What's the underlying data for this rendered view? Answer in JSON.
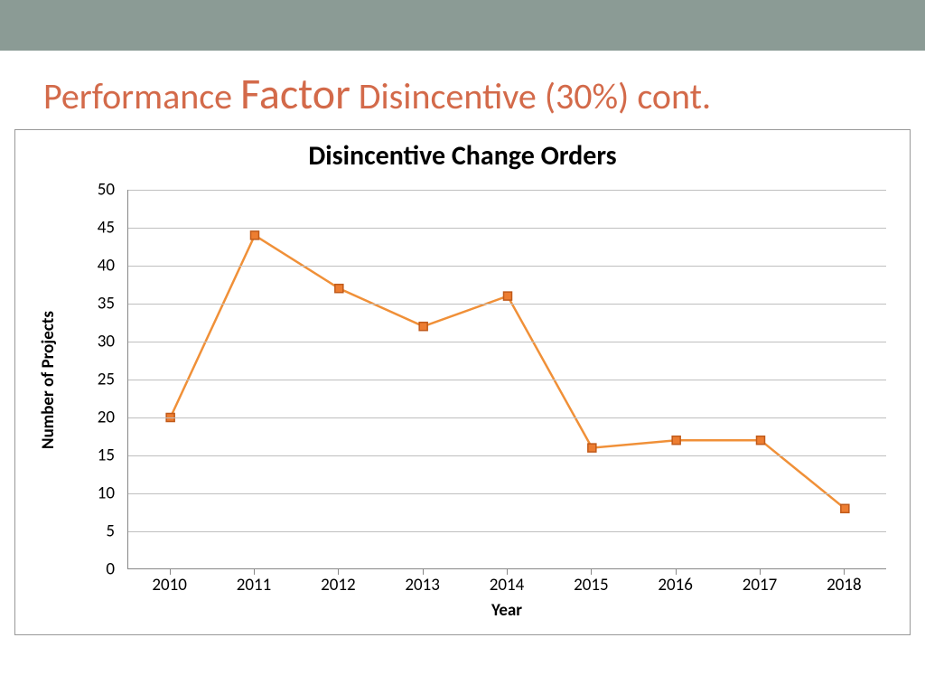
{
  "header": {
    "band_color": "#8b9b95"
  },
  "slide": {
    "title_word1": "Performance",
    "title_word2": "Factor",
    "title_word3": "Disincentive (30%) cont.",
    "title_color": "#d36a4a",
    "title_word1_fontsize": 40,
    "title_word2_fontsize": 48,
    "title_word3_fontsize": 40
  },
  "chart": {
    "type": "line",
    "title": "Disincentive Change Orders",
    "title_fontsize": 30,
    "title_fontweight": 700,
    "title_color": "#000000",
    "categories": [
      "2010",
      "2011",
      "2012",
      "2013",
      "2014",
      "2015",
      "2016",
      "2017",
      "2018"
    ],
    "values": [
      20,
      44,
      37,
      32,
      36,
      16,
      17,
      17,
      8
    ],
    "yaxis": {
      "label": "Number of Projects",
      "min": 0,
      "max": 50,
      "tick_step": 5,
      "label_fontsize": 19,
      "label_fontweight": 700
    },
    "xaxis": {
      "label": "Year",
      "label_fontsize": 19,
      "label_fontweight": 700
    },
    "line_color": "#f09038",
    "line_width": 2.5,
    "marker_color": "#ed7d31",
    "marker_border": "#c05a1a",
    "marker_size": 9,
    "grid_color": "#bfbfbf",
    "axis_color": "#888888",
    "tick_fontsize": 19,
    "background_color": "#ffffff",
    "border_color": "#999999"
  }
}
